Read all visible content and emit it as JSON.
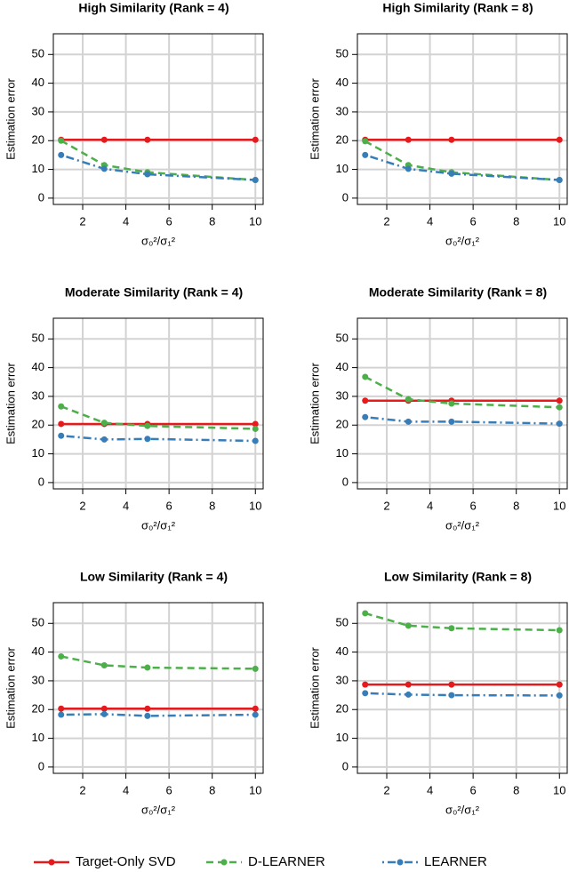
{
  "chart_data": [
    {
      "type": "line",
      "title": "High Similarity (Rank = 4)",
      "x_label": "σ₀²/σ₁²",
      "y_label": "Estimation error",
      "x": [
        1,
        3,
        5,
        10
      ],
      "xlim": [
        0.64,
        10.36
      ],
      "xticks": [
        2,
        4,
        6,
        8,
        10
      ],
      "ylim": [
        -2.2,
        57.2
      ],
      "yticks": [
        0,
        10,
        20,
        30,
        40,
        50
      ],
      "grid": true,
      "series": [
        {
          "name": "Target-Only SVD",
          "color": "#e41a1c",
          "dash": "solid",
          "values": [
            20.3,
            20.3,
            20.3,
            20.3
          ]
        },
        {
          "name": "D-LEARNER",
          "color": "#4daf4a",
          "dash": "dashed",
          "values": [
            20,
            11.5,
            9,
            6.3
          ]
        },
        {
          "name": "LEARNER",
          "color": "#377eb8",
          "dash": "dotdash",
          "values": [
            15,
            10.2,
            8.3,
            6.3
          ]
        }
      ]
    },
    {
      "type": "line",
      "title": "High Similarity (Rank = 8)",
      "x_label": "σ₀²/σ₁²",
      "y_label": "Estimation error",
      "x": [
        1,
        3,
        5,
        10
      ],
      "xlim": [
        0.64,
        10.36
      ],
      "xticks": [
        2,
        4,
        6,
        8,
        10
      ],
      "ylim": [
        -2.2,
        57.2
      ],
      "yticks": [
        0,
        10,
        20,
        30,
        40,
        50
      ],
      "grid": true,
      "series": [
        {
          "name": "Target-Only SVD",
          "color": "#e41a1c",
          "dash": "solid",
          "values": [
            20.3,
            20.3,
            20.3,
            20.3
          ]
        },
        {
          "name": "D-LEARNER",
          "color": "#4daf4a",
          "dash": "dashed",
          "values": [
            19.8,
            11.5,
            9,
            6.3
          ]
        },
        {
          "name": "LEARNER",
          "color": "#377eb8",
          "dash": "dotdash",
          "values": [
            15,
            10.2,
            8.5,
            6.3
          ]
        }
      ]
    },
    {
      "type": "line",
      "title": "Moderate Similarity (Rank = 4)",
      "x_label": "σ₀²/σ₁²",
      "y_label": "Estimation error",
      "x": [
        1,
        3,
        5,
        10
      ],
      "xlim": [
        0.64,
        10.36
      ],
      "xticks": [
        2,
        4,
        6,
        8,
        10
      ],
      "ylim": [
        -2.2,
        57.2
      ],
      "yticks": [
        0,
        10,
        20,
        30,
        40,
        50
      ],
      "grid": true,
      "series": [
        {
          "name": "Target-Only SVD",
          "color": "#e41a1c",
          "dash": "solid",
          "values": [
            20.4,
            20.4,
            20.4,
            20.4
          ]
        },
        {
          "name": "D-LEARNER",
          "color": "#4daf4a",
          "dash": "dashed",
          "values": [
            26.5,
            20.8,
            19.7,
            18.7
          ]
        },
        {
          "name": "LEARNER",
          "color": "#377eb8",
          "dash": "dotdash",
          "values": [
            16.3,
            15,
            15.2,
            14.5
          ]
        }
      ]
    },
    {
      "type": "line",
      "title": "Moderate Similarity (Rank = 8)",
      "x_label": "σ₀²/σ₁²",
      "y_label": "Estimation error",
      "x": [
        1,
        3,
        5,
        10
      ],
      "xlim": [
        0.64,
        10.36
      ],
      "xticks": [
        2,
        4,
        6,
        8,
        10
      ],
      "ylim": [
        -2.2,
        57.2
      ],
      "yticks": [
        0,
        10,
        20,
        30,
        40,
        50
      ],
      "grid": true,
      "series": [
        {
          "name": "Target-Only SVD",
          "color": "#e41a1c",
          "dash": "solid",
          "values": [
            28.5,
            28.5,
            28.5,
            28.5
          ]
        },
        {
          "name": "D-LEARNER",
          "color": "#4daf4a",
          "dash": "dashed",
          "values": [
            36.8,
            29,
            27.5,
            26.2
          ]
        },
        {
          "name": "LEARNER",
          "color": "#377eb8",
          "dash": "dotdash",
          "values": [
            22.8,
            21.2,
            21.2,
            20.5
          ]
        }
      ]
    },
    {
      "type": "line",
      "title": "Low Similarity (Rank = 4)",
      "x_label": "σ₀²/σ₁²",
      "y_label": "Estimation error",
      "x": [
        1,
        3,
        5,
        10
      ],
      "xlim": [
        0.64,
        10.36
      ],
      "xticks": [
        2,
        4,
        6,
        8,
        10
      ],
      "ylim": [
        -2.2,
        57.2
      ],
      "yticks": [
        0,
        10,
        20,
        30,
        40,
        50
      ],
      "grid": true,
      "series": [
        {
          "name": "Target-Only SVD",
          "color": "#e41a1c",
          "dash": "solid",
          "values": [
            20.3,
            20.3,
            20.3,
            20.3
          ]
        },
        {
          "name": "D-LEARNER",
          "color": "#4daf4a",
          "dash": "dashed",
          "values": [
            38.5,
            35.4,
            34.6,
            34.2
          ]
        },
        {
          "name": "LEARNER",
          "color": "#377eb8",
          "dash": "dotdash",
          "values": [
            18.2,
            18.4,
            17.8,
            18.2
          ]
        }
      ]
    },
    {
      "type": "line",
      "title": "Low Similarity (Rank = 8)",
      "x_label": "σ₀²/σ₁²",
      "y_label": "Estimation error",
      "x": [
        1,
        3,
        5,
        10
      ],
      "xlim": [
        0.64,
        10.36
      ],
      "xticks": [
        2,
        4,
        6,
        8,
        10
      ],
      "ylim": [
        -2.2,
        57.2
      ],
      "yticks": [
        0,
        10,
        20,
        30,
        40,
        50
      ],
      "grid": true,
      "series": [
        {
          "name": "Target-Only SVD",
          "color": "#e41a1c",
          "dash": "solid",
          "values": [
            28.7,
            28.7,
            28.7,
            28.7
          ]
        },
        {
          "name": "D-LEARNER",
          "color": "#4daf4a",
          "dash": "dashed",
          "values": [
            53.5,
            49.2,
            48.3,
            47.6
          ]
        },
        {
          "name": "LEARNER",
          "color": "#377eb8",
          "dash": "dotdash",
          "values": [
            25.7,
            25.2,
            25,
            24.9
          ]
        }
      ]
    }
  ]
}
